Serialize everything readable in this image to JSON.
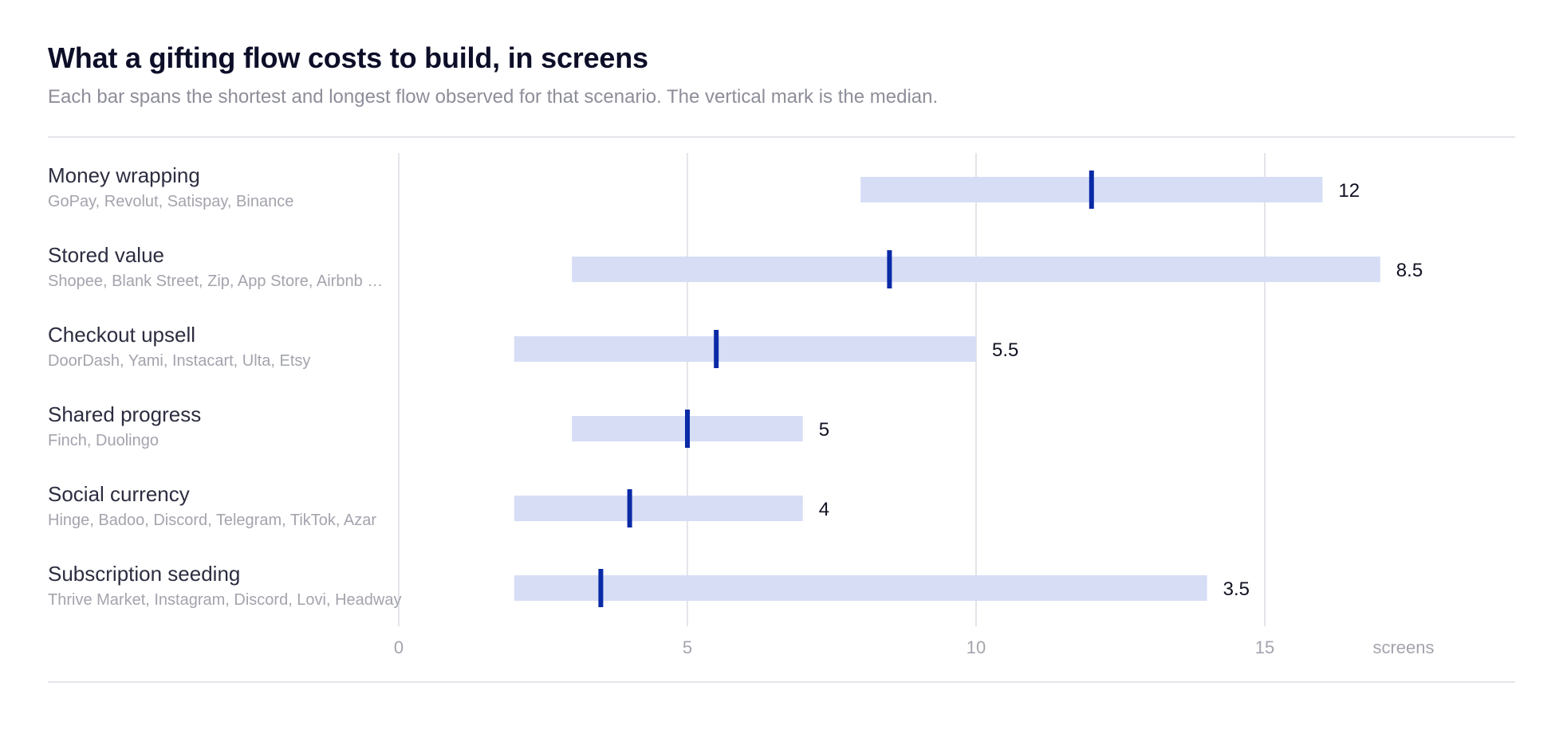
{
  "title": "What a gifting flow costs to build, in screens",
  "subtitle": "Each bar spans the shortest and longest flow observed for that scenario. The vertical mark is the median.",
  "colors": {
    "range_bar": "#d6ddf5",
    "median_mark": "#0a2aa6",
    "grid": "#e4e5ea"
  },
  "chart_data": {
    "type": "range-bar",
    "xlabel": "screens",
    "xlim": [
      0,
      20
    ],
    "xticks": [
      0,
      5,
      10,
      15
    ],
    "rows": [
      {
        "label": "Money wrapping",
        "apps": "GoPay, Revolut, Satispay, Binance",
        "min": 8,
        "max": 16,
        "median": 12,
        "value_label": "12"
      },
      {
        "label": "Stored value",
        "apps": "Shopee, Blank Street, Zip, App Store, Airbnb …",
        "min": 3,
        "max": 17,
        "median": 8.5,
        "value_label": "8.5"
      },
      {
        "label": "Checkout upsell",
        "apps": "DoorDash, Yami, Instacart, Ulta, Etsy",
        "min": 2,
        "max": 10,
        "median": 5.5,
        "value_label": "5.5"
      },
      {
        "label": "Shared progress",
        "apps": "Finch, Duolingo",
        "min": 3,
        "max": 7,
        "median": 5,
        "value_label": "5"
      },
      {
        "label": "Social currency",
        "apps": "Hinge, Badoo, Discord, Telegram, TikTok, Azar",
        "min": 2,
        "max": 7,
        "median": 4,
        "value_label": "4"
      },
      {
        "label": "Subscription seeding",
        "apps": "Thrive Market, Instagram, Discord, Lovi, Headway",
        "min": 2,
        "max": 14,
        "median": 3.5,
        "value_label": "3.5"
      }
    ]
  }
}
